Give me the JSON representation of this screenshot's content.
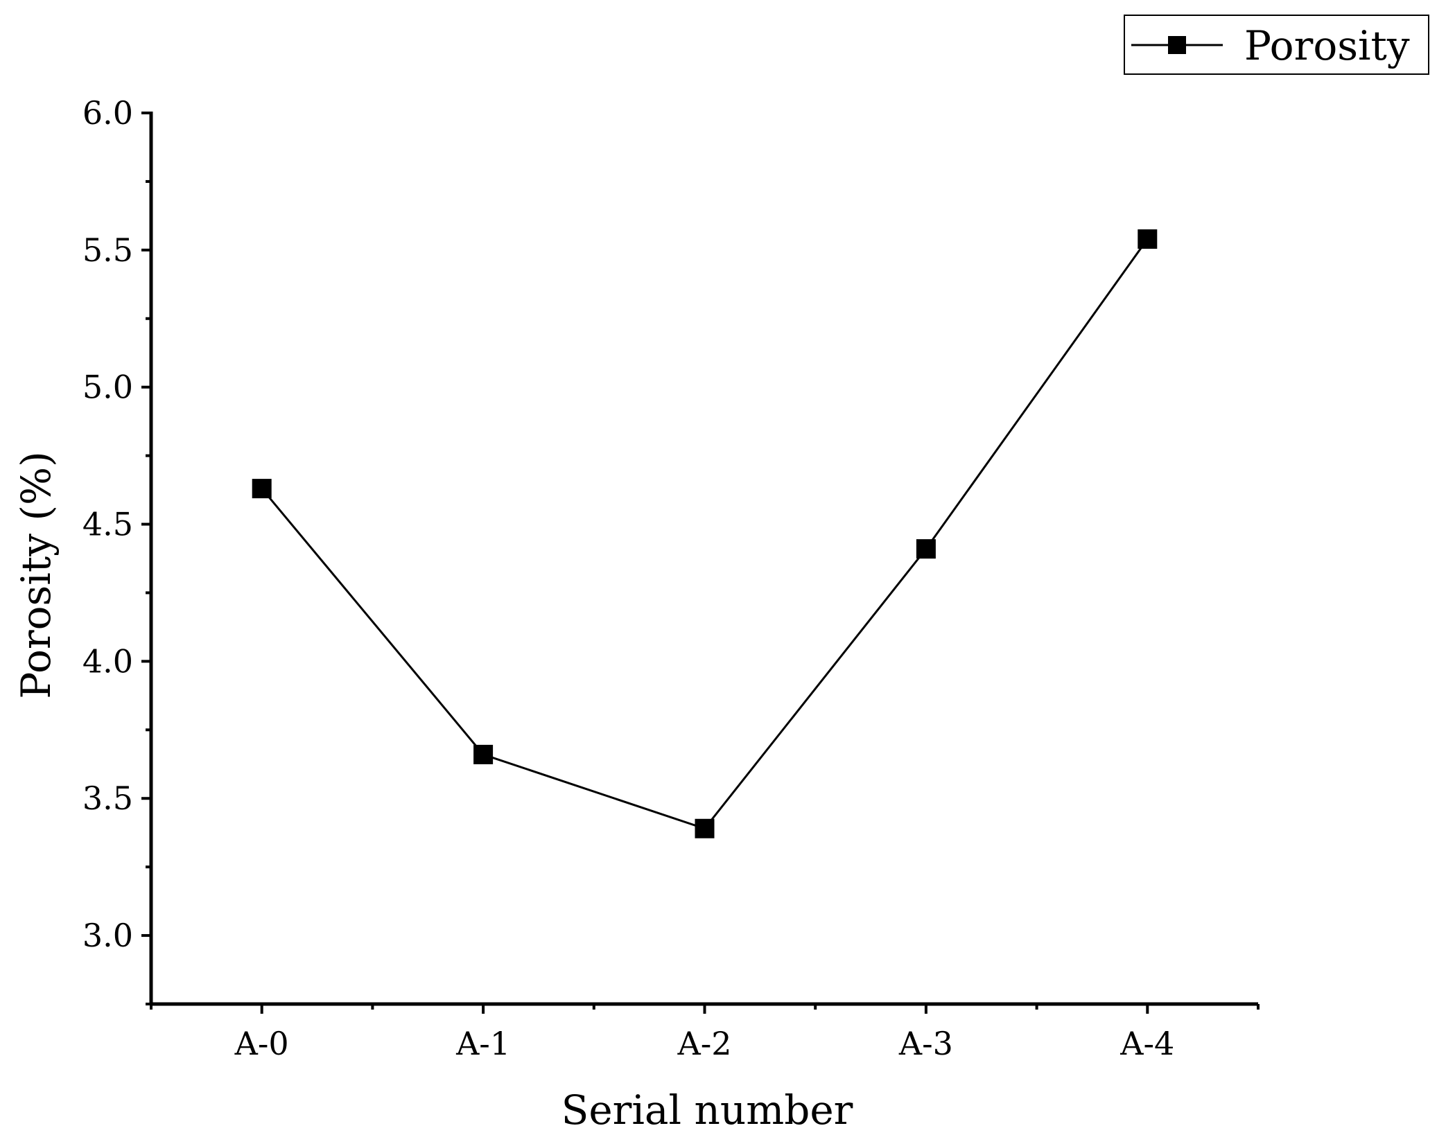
{
  "chart_data": {
    "type": "line",
    "categories": [
      "A-0",
      "A-1",
      "A-2",
      "A-3",
      "A-4"
    ],
    "series": [
      {
        "name": "Porosity",
        "values": [
          4.63,
          3.66,
          3.39,
          4.41,
          5.54
        ],
        "color": "#000000",
        "marker": "square"
      }
    ],
    "xlabel": "Serial number",
    "ylabel": "Porosity (%)",
    "ylim": [
      2.75,
      6.0
    ],
    "yticks": [
      3.0,
      3.5,
      4.0,
      4.5,
      5.0,
      5.5,
      6.0
    ],
    "ytick_labels": [
      "3.0",
      "3.5",
      "4.0",
      "4.5",
      "5.0",
      "5.5",
      "6.0"
    ],
    "grid": false,
    "legend_position": "top-right"
  }
}
